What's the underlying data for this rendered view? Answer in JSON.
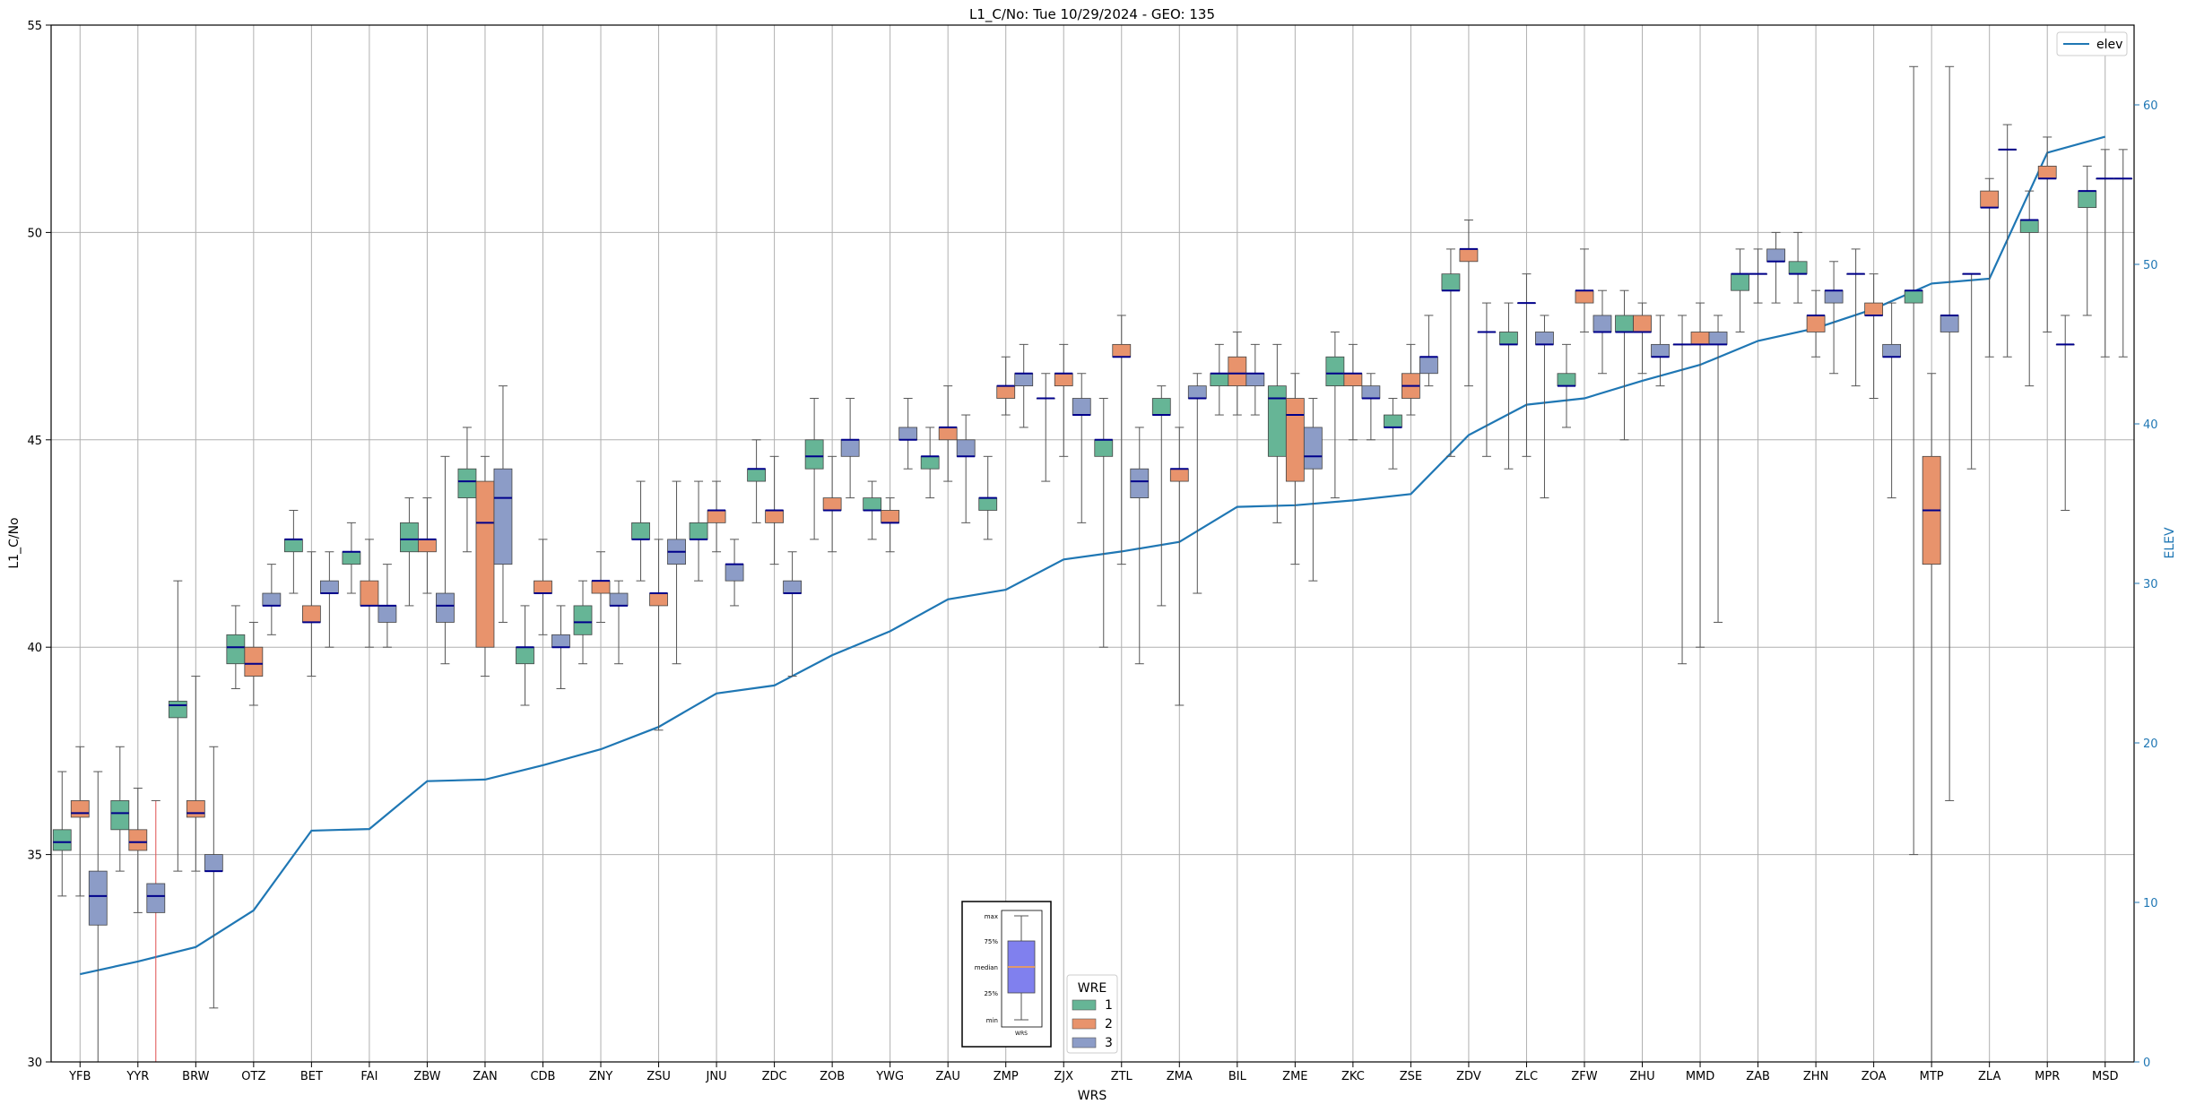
{
  "colors": {
    "wre1": "#66b596",
    "wre2": "#e8936c",
    "wre3": "#8c9cc7",
    "median": "#00008b",
    "elev": "#1f77b4",
    "whisker": "#555555",
    "grid": "#b0b0b0",
    "outlier_line": "#e05050",
    "key_box": "#8080ee"
  },
  "chart_data": {
    "type": "box",
    "title": "L1_C/No: Tue 10/29/2024 - GEO: 135",
    "xlabel": "WRS",
    "ylabel": "L1_C/No",
    "y2label": "ELEV",
    "ylim": [
      30,
      55
    ],
    "y2lim": [
      0,
      65
    ],
    "yticks": [
      "30",
      "35",
      "40",
      "45",
      "50",
      "55"
    ],
    "y2ticks": [
      "0",
      "10",
      "20",
      "30",
      "40",
      "50",
      "60"
    ],
    "grid": true,
    "legend_position": "top-right",
    "elev_legend": "elev",
    "wre_legend": {
      "title": "WRE",
      "labels": [
        "1",
        "2",
        "3"
      ],
      "position": "bottom-center"
    },
    "key_labels": {
      "max": "max",
      "q3": "75%",
      "median": "median",
      "q1": "25%",
      "min": "min",
      "caption": "WRS"
    },
    "categories": [
      "YFB",
      "YYR",
      "BRW",
      "OTZ",
      "BET",
      "FAI",
      "ZBW",
      "ZAN",
      "CDB",
      "ZNY",
      "ZSU",
      "JNU",
      "ZDC",
      "ZOB",
      "YWG",
      "ZAU",
      "ZMP",
      "ZJX",
      "ZTL",
      "ZMA",
      "BIL",
      "ZME",
      "ZKC",
      "ZSE",
      "ZDV",
      "ZLC",
      "ZFW",
      "ZHU",
      "MMD",
      "ZAB",
      "ZHN",
      "ZOA",
      "MTP",
      "ZLA",
      "MPR",
      "MSD"
    ],
    "elev": [
      5.5,
      6.3,
      7.2,
      9.5,
      14.5,
      14.6,
      17.6,
      17.7,
      18.6,
      19.6,
      21.0,
      23.1,
      23.6,
      25.5,
      27.0,
      29.0,
      29.6,
      31.5,
      32.0,
      32.6,
      34.8,
      34.9,
      35.2,
      35.6,
      39.3,
      41.2,
      41.6,
      42.7,
      43.7,
      45.2,
      46.0,
      47.2,
      48.8,
      49.1,
      57.0,
      58.0
    ],
    "boxes": [
      {
        "wrs": "YFB",
        "wre": 1,
        "min": 34.0,
        "q1": 35.1,
        "median": 35.3,
        "q3": 35.6,
        "max": 37.0
      },
      {
        "wrs": "YFB",
        "wre": 2,
        "min": 34.0,
        "q1": 35.9,
        "median": 36.0,
        "q3": 36.3,
        "max": 37.6
      },
      {
        "wrs": "YFB",
        "wre": 3,
        "min": 30.0,
        "q1": 33.3,
        "median": 34.0,
        "q3": 34.6,
        "max": 37.0
      },
      {
        "wrs": "YYR",
        "wre": 1,
        "min": 34.6,
        "q1": 35.6,
        "median": 36.0,
        "q3": 36.3,
        "max": 37.6
      },
      {
        "wrs": "YYR",
        "wre": 2,
        "min": 33.6,
        "q1": 35.1,
        "median": 35.3,
        "q3": 35.6,
        "max": 36.6
      },
      {
        "wrs": "YYR",
        "wre": 3,
        "min": 30.0,
        "q1": 33.6,
        "median": 34.0,
        "q3": 34.3,
        "max": 36.3
      },
      {
        "wrs": "BRW",
        "wre": 1,
        "min": 34.6,
        "q1": 38.3,
        "median": 38.6,
        "q3": 38.7,
        "max": 41.6
      },
      {
        "wrs": "BRW",
        "wre": 2,
        "min": 34.6,
        "q1": 35.9,
        "median": 36.0,
        "q3": 36.3,
        "max": 39.3
      },
      {
        "wrs": "BRW",
        "wre": 3,
        "min": 31.3,
        "q1": 34.6,
        "median": 34.6,
        "q3": 35.0,
        "max": 37.6
      },
      {
        "wrs": "OTZ",
        "wre": 1,
        "min": 39.0,
        "q1": 39.6,
        "median": 40.0,
        "q3": 40.3,
        "max": 41.0
      },
      {
        "wrs": "OTZ",
        "wre": 2,
        "min": 38.6,
        "q1": 39.3,
        "median": 39.6,
        "q3": 40.0,
        "max": 40.6
      },
      {
        "wrs": "OTZ",
        "wre": 3,
        "min": 40.3,
        "q1": 41.0,
        "median": 41.0,
        "q3": 41.3,
        "max": 42.0
      },
      {
        "wrs": "BET",
        "wre": 1,
        "min": 41.3,
        "q1": 42.3,
        "median": 42.6,
        "q3": 42.6,
        "max": 43.3
      },
      {
        "wrs": "BET",
        "wre": 2,
        "min": 39.3,
        "q1": 40.6,
        "median": 40.6,
        "q3": 41.0,
        "max": 42.3
      },
      {
        "wrs": "BET",
        "wre": 3,
        "min": 40.0,
        "q1": 41.3,
        "median": 41.3,
        "q3": 41.6,
        "max": 42.3
      },
      {
        "wrs": "FAI",
        "wre": 1,
        "min": 41.3,
        "q1": 42.0,
        "median": 42.3,
        "q3": 42.3,
        "max": 43.0
      },
      {
        "wrs": "FAI",
        "wre": 2,
        "min": 40.0,
        "q1": 41.0,
        "median": 41.0,
        "q3": 41.6,
        "max": 42.6
      },
      {
        "wrs": "FAI",
        "wre": 3,
        "min": 40.0,
        "q1": 40.6,
        "median": 41.0,
        "q3": 41.0,
        "max": 42.0
      },
      {
        "wrs": "ZBW",
        "wre": 1,
        "min": 41.0,
        "q1": 42.3,
        "median": 42.6,
        "q3": 43.0,
        "max": 43.6
      },
      {
        "wrs": "ZBW",
        "wre": 2,
        "min": 41.3,
        "q1": 42.3,
        "median": 42.6,
        "q3": 42.6,
        "max": 43.6
      },
      {
        "wrs": "ZBW",
        "wre": 3,
        "min": 39.6,
        "q1": 40.6,
        "median": 41.0,
        "q3": 41.3,
        "max": 44.6
      },
      {
        "wrs": "ZAN",
        "wre": 1,
        "min": 42.3,
        "q1": 43.6,
        "median": 44.0,
        "q3": 44.3,
        "max": 45.3
      },
      {
        "wrs": "ZAN",
        "wre": 2,
        "min": 39.3,
        "q1": 40.0,
        "median": 43.0,
        "q3": 44.0,
        "max": 44.6
      },
      {
        "wrs": "ZAN",
        "wre": 3,
        "min": 40.6,
        "q1": 42.0,
        "median": 43.6,
        "q3": 44.3,
        "max": 46.3
      },
      {
        "wrs": "CDB",
        "wre": 1,
        "min": 38.6,
        "q1": 39.6,
        "median": 40.0,
        "q3": 40.0,
        "max": 41.0
      },
      {
        "wrs": "CDB",
        "wre": 2,
        "min": 40.3,
        "q1": 41.3,
        "median": 41.3,
        "q3": 41.6,
        "max": 42.6
      },
      {
        "wrs": "CDB",
        "wre": 3,
        "min": 39.0,
        "q1": 40.0,
        "median": 40.0,
        "q3": 40.3,
        "max": 41.0
      },
      {
        "wrs": "ZNY",
        "wre": 1,
        "min": 39.6,
        "q1": 40.3,
        "median": 40.6,
        "q3": 41.0,
        "max": 41.6
      },
      {
        "wrs": "ZNY",
        "wre": 2,
        "min": 40.6,
        "q1": 41.3,
        "median": 41.6,
        "q3": 41.6,
        "max": 42.3
      },
      {
        "wrs": "ZNY",
        "wre": 3,
        "min": 39.6,
        "q1": 41.0,
        "median": 41.0,
        "q3": 41.3,
        "max": 41.6
      },
      {
        "wrs": "ZSU",
        "wre": 1,
        "min": 41.6,
        "q1": 42.6,
        "median": 42.6,
        "q3": 43.0,
        "max": 44.0
      },
      {
        "wrs": "ZSU",
        "wre": 2,
        "min": 38.0,
        "q1": 41.0,
        "median": 41.3,
        "q3": 41.3,
        "max": 42.6
      },
      {
        "wrs": "ZSU",
        "wre": 3,
        "min": 39.6,
        "q1": 42.0,
        "median": 42.3,
        "q3": 42.6,
        "max": 44.0
      },
      {
        "wrs": "JNU",
        "wre": 1,
        "min": 41.6,
        "q1": 42.6,
        "median": 42.6,
        "q3": 43.0,
        "max": 44.0
      },
      {
        "wrs": "JNU",
        "wre": 2,
        "min": 42.3,
        "q1": 43.0,
        "median": 43.3,
        "q3": 43.3,
        "max": 44.0
      },
      {
        "wrs": "JNU",
        "wre": 3,
        "min": 41.0,
        "q1": 41.6,
        "median": 42.0,
        "q3": 42.0,
        "max": 42.6
      },
      {
        "wrs": "ZDC",
        "wre": 1,
        "min": 43.0,
        "q1": 44.0,
        "median": 44.3,
        "q3": 44.3,
        "max": 45.0
      },
      {
        "wrs": "ZDC",
        "wre": 2,
        "min": 42.0,
        "q1": 43.0,
        "median": 43.3,
        "q3": 43.3,
        "max": 44.6
      },
      {
        "wrs": "ZDC",
        "wre": 3,
        "min": 39.3,
        "q1": 41.3,
        "median": 41.3,
        "q3": 41.6,
        "max": 42.3
      },
      {
        "wrs": "ZOB",
        "wre": 1,
        "min": 42.6,
        "q1": 44.3,
        "median": 44.6,
        "q3": 45.0,
        "max": 46.0
      },
      {
        "wrs": "ZOB",
        "wre": 2,
        "min": 42.3,
        "q1": 43.3,
        "median": 43.3,
        "q3": 43.6,
        "max": 44.6
      },
      {
        "wrs": "ZOB",
        "wre": 3,
        "min": 43.6,
        "q1": 44.6,
        "median": 45.0,
        "q3": 45.0,
        "max": 46.0
      },
      {
        "wrs": "YWG",
        "wre": 1,
        "min": 42.6,
        "q1": 43.3,
        "median": 43.3,
        "q3": 43.6,
        "max": 44.0
      },
      {
        "wrs": "YWG",
        "wre": 2,
        "min": 42.3,
        "q1": 43.0,
        "median": 43.0,
        "q3": 43.3,
        "max": 43.6
      },
      {
        "wrs": "YWG",
        "wre": 3,
        "min": 44.3,
        "q1": 45.0,
        "median": 45.0,
        "q3": 45.3,
        "max": 46.0
      },
      {
        "wrs": "ZAU",
        "wre": 1,
        "min": 43.6,
        "q1": 44.3,
        "median": 44.6,
        "q3": 44.6,
        "max": 45.3
      },
      {
        "wrs": "ZAU",
        "wre": 2,
        "min": 44.0,
        "q1": 45.0,
        "median": 45.3,
        "q3": 45.3,
        "max": 46.3
      },
      {
        "wrs": "ZAU",
        "wre": 3,
        "min": 43.0,
        "q1": 44.6,
        "median": 44.6,
        "q3": 45.0,
        "max": 45.6
      },
      {
        "wrs": "ZMP",
        "wre": 1,
        "min": 42.6,
        "q1": 43.3,
        "median": 43.6,
        "q3": 43.6,
        "max": 44.6
      },
      {
        "wrs": "ZMP",
        "wre": 2,
        "min": 45.6,
        "q1": 46.0,
        "median": 46.3,
        "q3": 46.3,
        "max": 47.0
      },
      {
        "wrs": "ZMP",
        "wre": 3,
        "min": 45.3,
        "q1": 46.3,
        "median": 46.6,
        "q3": 46.6,
        "max": 47.3
      },
      {
        "wrs": "ZJX",
        "wre": 1,
        "min": 44.0,
        "q1": 46.0,
        "median": 46.0,
        "q3": 46.0,
        "max": 46.6
      },
      {
        "wrs": "ZJX",
        "wre": 2,
        "min": 44.6,
        "q1": 46.3,
        "median": 46.6,
        "q3": 46.6,
        "max": 47.3
      },
      {
        "wrs": "ZJX",
        "wre": 3,
        "min": 43.0,
        "q1": 45.6,
        "median": 45.6,
        "q3": 46.0,
        "max": 46.6
      },
      {
        "wrs": "ZTL",
        "wre": 1,
        "min": 40.0,
        "q1": 44.6,
        "median": 45.0,
        "q3": 45.0,
        "max": 46.0
      },
      {
        "wrs": "ZTL",
        "wre": 2,
        "min": 42.0,
        "q1": 47.0,
        "median": 47.0,
        "q3": 47.3,
        "max": 48.0
      },
      {
        "wrs": "ZTL",
        "wre": 3,
        "min": 39.6,
        "q1": 43.6,
        "median": 44.0,
        "q3": 44.3,
        "max": 45.3
      },
      {
        "wrs": "ZMA",
        "wre": 1,
        "min": 41.0,
        "q1": 45.6,
        "median": 45.6,
        "q3": 46.0,
        "max": 46.3
      },
      {
        "wrs": "ZMA",
        "wre": 2,
        "min": 38.6,
        "q1": 44.0,
        "median": 44.3,
        "q3": 44.3,
        "max": 45.3
      },
      {
        "wrs": "ZMA",
        "wre": 3,
        "min": 41.3,
        "q1": 46.0,
        "median": 46.0,
        "q3": 46.3,
        "max": 46.6
      },
      {
        "wrs": "BIL",
        "wre": 1,
        "min": 45.6,
        "q1": 46.3,
        "median": 46.6,
        "q3": 46.6,
        "max": 47.3
      },
      {
        "wrs": "BIL",
        "wre": 2,
        "min": 45.6,
        "q1": 46.3,
        "median": 46.6,
        "q3": 47.0,
        "max": 47.6
      },
      {
        "wrs": "BIL",
        "wre": 3,
        "min": 45.6,
        "q1": 46.3,
        "median": 46.6,
        "q3": 46.6,
        "max": 47.3
      },
      {
        "wrs": "ZME",
        "wre": 1,
        "min": 43.0,
        "q1": 44.6,
        "median": 46.0,
        "q3": 46.3,
        "max": 47.3
      },
      {
        "wrs": "ZME",
        "wre": 2,
        "min": 42.0,
        "q1": 44.0,
        "median": 45.6,
        "q3": 46.0,
        "max": 46.6
      },
      {
        "wrs": "ZME",
        "wre": 3,
        "min": 41.6,
        "q1": 44.3,
        "median": 44.6,
        "q3": 45.3,
        "max": 46.0
      },
      {
        "wrs": "ZKC",
        "wre": 1,
        "min": 43.6,
        "q1": 46.3,
        "median": 46.6,
        "q3": 47.0,
        "max": 47.6
      },
      {
        "wrs": "ZKC",
        "wre": 2,
        "min": 45.0,
        "q1": 46.3,
        "median": 46.6,
        "q3": 46.6,
        "max": 47.3
      },
      {
        "wrs": "ZKC",
        "wre": 3,
        "min": 45.0,
        "q1": 46.0,
        "median": 46.0,
        "q3": 46.3,
        "max": 46.6
      },
      {
        "wrs": "ZSE",
        "wre": 1,
        "min": 44.3,
        "q1": 45.3,
        "median": 45.3,
        "q3": 45.6,
        "max": 46.0
      },
      {
        "wrs": "ZSE",
        "wre": 2,
        "min": 45.6,
        "q1": 46.0,
        "median": 46.3,
        "q3": 46.6,
        "max": 47.3
      },
      {
        "wrs": "ZSE",
        "wre": 3,
        "min": 46.3,
        "q1": 46.6,
        "median": 47.0,
        "q3": 47.0,
        "max": 48.0
      },
      {
        "wrs": "ZDV",
        "wre": 1,
        "min": 44.6,
        "q1": 48.6,
        "median": 48.6,
        "q3": 49.0,
        "max": 49.6
      },
      {
        "wrs": "ZDV",
        "wre": 2,
        "min": 46.3,
        "q1": 49.3,
        "median": 49.6,
        "q3": 49.6,
        "max": 50.3
      },
      {
        "wrs": "ZDV",
        "wre": 3,
        "min": 44.6,
        "q1": 47.6,
        "median": 47.6,
        "q3": 47.6,
        "max": 48.3
      },
      {
        "wrs": "ZLC",
        "wre": 1,
        "min": 44.3,
        "q1": 47.3,
        "median": 47.3,
        "q3": 47.6,
        "max": 48.3
      },
      {
        "wrs": "ZLC",
        "wre": 2,
        "min": 44.6,
        "q1": 48.3,
        "median": 48.3,
        "q3": 48.3,
        "max": 49.0
      },
      {
        "wrs": "ZLC",
        "wre": 3,
        "min": 43.6,
        "q1": 47.3,
        "median": 47.3,
        "q3": 47.6,
        "max": 48.0
      },
      {
        "wrs": "ZFW",
        "wre": 1,
        "min": 45.3,
        "q1": 46.3,
        "median": 46.3,
        "q3": 46.6,
        "max": 47.3
      },
      {
        "wrs": "ZFW",
        "wre": 2,
        "min": 47.6,
        "q1": 48.3,
        "median": 48.6,
        "q3": 48.6,
        "max": 49.6
      },
      {
        "wrs": "ZFW",
        "wre": 3,
        "min": 46.6,
        "q1": 47.6,
        "median": 47.6,
        "q3": 48.0,
        "max": 48.6
      },
      {
        "wrs": "ZHU",
        "wre": 1,
        "min": 45.0,
        "q1": 47.6,
        "median": 47.6,
        "q3": 48.0,
        "max": 48.6
      },
      {
        "wrs": "ZHU",
        "wre": 2,
        "min": 46.6,
        "q1": 47.6,
        "median": 47.6,
        "q3": 48.0,
        "max": 48.3
      },
      {
        "wrs": "ZHU",
        "wre": 3,
        "min": 46.3,
        "q1": 47.0,
        "median": 47.0,
        "q3": 47.3,
        "max": 48.0
      },
      {
        "wrs": "MMD",
        "wre": 1,
        "min": 39.6,
        "q1": 47.3,
        "median": 47.3,
        "q3": 47.3,
        "max": 48.0
      },
      {
        "wrs": "MMD",
        "wre": 2,
        "min": 40.0,
        "q1": 47.3,
        "median": 47.3,
        "q3": 47.6,
        "max": 48.3
      },
      {
        "wrs": "MMD",
        "wre": 3,
        "min": 40.6,
        "q1": 47.3,
        "median": 47.3,
        "q3": 47.6,
        "max": 48.0
      },
      {
        "wrs": "ZAB",
        "wre": 1,
        "min": 47.6,
        "q1": 48.6,
        "median": 49.0,
        "q3": 49.0,
        "max": 49.6
      },
      {
        "wrs": "ZAB",
        "wre": 2,
        "min": 48.3,
        "q1": 49.0,
        "median": 49.0,
        "q3": 49.0,
        "max": 49.6
      },
      {
        "wrs": "ZAB",
        "wre": 3,
        "min": 48.3,
        "q1": 49.3,
        "median": 49.3,
        "q3": 49.6,
        "max": 50.0
      },
      {
        "wrs": "ZHN",
        "wre": 1,
        "min": 48.3,
        "q1": 49.0,
        "median": 49.0,
        "q3": 49.3,
        "max": 50.0
      },
      {
        "wrs": "ZHN",
        "wre": 2,
        "min": 47.0,
        "q1": 47.6,
        "median": 48.0,
        "q3": 48.0,
        "max": 48.6
      },
      {
        "wrs": "ZHN",
        "wre": 3,
        "min": 46.6,
        "q1": 48.3,
        "median": 48.6,
        "q3": 48.6,
        "max": 49.3
      },
      {
        "wrs": "ZOA",
        "wre": 1,
        "min": 46.3,
        "q1": 49.0,
        "median": 49.0,
        "q3": 49.0,
        "max": 49.6
      },
      {
        "wrs": "ZOA",
        "wre": 2,
        "min": 46.0,
        "q1": 48.0,
        "median": 48.0,
        "q3": 48.3,
        "max": 49.0
      },
      {
        "wrs": "ZOA",
        "wre": 3,
        "min": 43.6,
        "q1": 47.0,
        "median": 47.0,
        "q3": 47.3,
        "max": 48.3
      },
      {
        "wrs": "MTP",
        "wre": 1,
        "min": 35.0,
        "q1": 48.3,
        "median": 48.6,
        "q3": 48.6,
        "max": 54.0
      },
      {
        "wrs": "MTP",
        "wre": 2,
        "min": 30.0,
        "q1": 42.0,
        "median": 43.3,
        "q3": 44.6,
        "max": 46.6
      },
      {
        "wrs": "MTP",
        "wre": 3,
        "min": 36.3,
        "q1": 47.6,
        "median": 48.0,
        "q3": 48.0,
        "max": 54.0
      },
      {
        "wrs": "ZLA",
        "wre": 1,
        "min": 44.3,
        "q1": 49.0,
        "median": 49.0,
        "q3": 49.0,
        "max": 49.0
      },
      {
        "wrs": "ZLA",
        "wre": 2,
        "min": 47.0,
        "q1": 50.6,
        "median": 50.6,
        "q3": 51.0,
        "max": 51.3
      },
      {
        "wrs": "ZLA",
        "wre": 3,
        "min": 47.0,
        "q1": 52.0,
        "median": 52.0,
        "q3": 52.0,
        "max": 52.6
      },
      {
        "wrs": "MPR",
        "wre": 1,
        "min": 46.3,
        "q1": 50.0,
        "median": 50.3,
        "q3": 50.3,
        "max": 51.0
      },
      {
        "wrs": "MPR",
        "wre": 2,
        "min": 47.6,
        "q1": 51.3,
        "median": 51.3,
        "q3": 51.6,
        "max": 52.3
      },
      {
        "wrs": "MPR",
        "wre": 3,
        "min": 43.3,
        "q1": 47.3,
        "median": 47.3,
        "q3": 47.3,
        "max": 48.0
      },
      {
        "wrs": "MSD",
        "wre": 1,
        "min": 48.0,
        "q1": 50.6,
        "median": 51.0,
        "q3": 51.0,
        "max": 51.6
      },
      {
        "wrs": "MSD",
        "wre": 2,
        "min": 47.0,
        "q1": 51.3,
        "median": 51.3,
        "q3": 51.3,
        "max": 52.0
      },
      {
        "wrs": "MSD",
        "wre": 3,
        "min": 47.0,
        "q1": 51.3,
        "median": 51.3,
        "q3": 51.3,
        "max": 52.0
      }
    ]
  }
}
